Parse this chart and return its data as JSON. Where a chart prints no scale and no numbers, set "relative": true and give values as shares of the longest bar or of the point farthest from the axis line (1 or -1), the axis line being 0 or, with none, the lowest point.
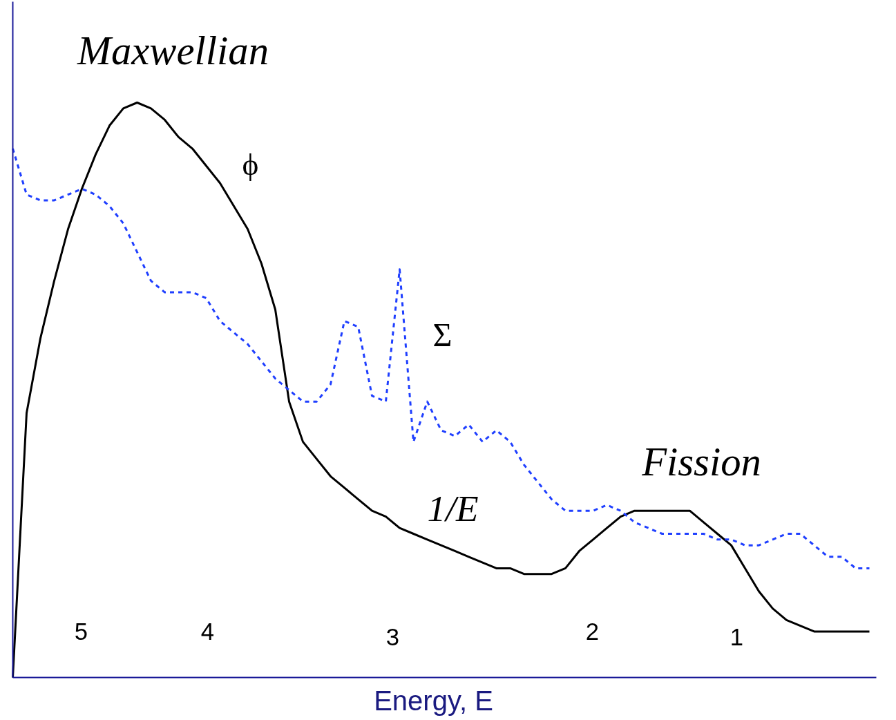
{
  "chart_data": {
    "type": "line",
    "relative": true,
    "xlabel": "Energy, E",
    "grid": false,
    "marker": "none",
    "categories": [
      null,
      null,
      null,
      null,
      null,
      null,
      null,
      null,
      null,
      null,
      null,
      null,
      null,
      null,
      null,
      null,
      null,
      null,
      null,
      null,
      null,
      null,
      null,
      null,
      null,
      null,
      null,
      null,
      null,
      null,
      null,
      null,
      null,
      null,
      null,
      null,
      null,
      null,
      null,
      null,
      null,
      null,
      null,
      null,
      null,
      null,
      null,
      null,
      null,
      null,
      null,
      null,
      null,
      null,
      null,
      null,
      null,
      null,
      null,
      null,
      null,
      null,
      null
    ],
    "series": [
      {
        "color": "#000000",
        "line_style": "solid",
        "values": [
          0,
          0.46,
          0.59,
          0.69,
          0.78,
          0.85,
          0.91,
          0.96,
          0.99,
          1.0,
          0.99,
          0.97,
          0.94,
          0.92,
          0.89,
          0.86,
          0.82,
          0.78,
          0.72,
          0.64,
          0.48,
          0.41,
          0.38,
          0.35,
          0.33,
          0.31,
          0.29,
          0.28,
          0.26,
          0.25,
          0.24,
          0.23,
          0.22,
          0.21,
          0.2,
          0.19,
          0.19,
          0.18,
          0.18,
          0.18,
          0.19,
          0.22,
          0.24,
          0.26,
          0.28,
          0.29,
          0.29,
          0.29,
          0.29,
          0.29,
          0.27,
          0.25,
          0.23,
          0.19,
          0.15,
          0.12,
          0.1,
          0.09,
          0.08,
          0.08,
          0.08,
          0.08,
          0.08
        ]
      },
      {
        "color": "#1f3fff",
        "line_style": "dashed",
        "values": [
          0.92,
          0.84,
          0.83,
          0.83,
          0.84,
          0.85,
          0.84,
          0.82,
          0.79,
          0.74,
          0.69,
          0.67,
          0.67,
          0.67,
          0.66,
          0.62,
          0.6,
          0.58,
          0.55,
          0.52,
          0.5,
          0.48,
          0.48,
          0.51,
          0.62,
          0.61,
          0.49,
          0.48,
          0.71,
          0.41,
          0.48,
          0.43,
          0.42,
          0.44,
          0.41,
          0.43,
          0.41,
          0.37,
          0.34,
          0.31,
          0.29,
          0.29,
          0.29,
          0.3,
          0.29,
          0.27,
          0.26,
          0.25,
          0.25,
          0.25,
          0.25,
          0.24,
          0.24,
          0.23,
          0.23,
          0.24,
          0.25,
          0.25,
          0.23,
          0.21,
          0.21,
          0.19,
          0.19
        ]
      }
    ],
    "annotations": [
      "Maxwellian",
      "ϕ",
      "Σ",
      "1/E",
      "Fission",
      "5",
      "4",
      "3",
      "2",
      "1"
    ]
  }
}
